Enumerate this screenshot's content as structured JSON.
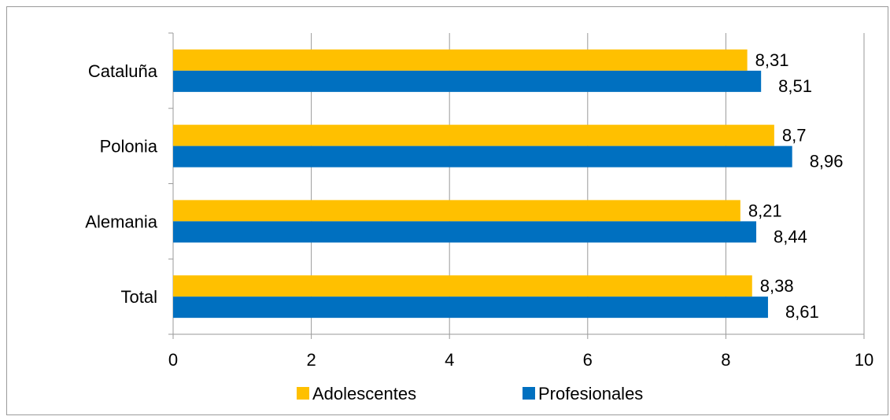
{
  "chart_data": {
    "type": "bar",
    "orientation": "horizontal",
    "categories": [
      "Cataluña",
      "Polonia",
      "Alemania",
      "Total"
    ],
    "series": [
      {
        "name": "Adolescentes",
        "color": "#FFC000",
        "values": [
          8.31,
          8.7,
          8.21,
          8.38
        ],
        "labels": [
          "8,31",
          "8,7",
          "8,21",
          "8,38"
        ]
      },
      {
        "name": "Profesionales",
        "color": "#0070C0",
        "values": [
          8.51,
          8.96,
          8.44,
          8.61
        ],
        "labels": [
          "8,51",
          "8,96",
          "8,44",
          "8,61"
        ]
      }
    ],
    "xlim": [
      0,
      10
    ],
    "xticks": [
      0,
      2,
      4,
      6,
      8,
      10
    ],
    "xtick_labels": [
      "0",
      "2",
      "4",
      "6",
      "8",
      "10"
    ],
    "grid": "vertical",
    "legend_position": "bottom",
    "title": "",
    "xlabel": "",
    "ylabel": ""
  }
}
